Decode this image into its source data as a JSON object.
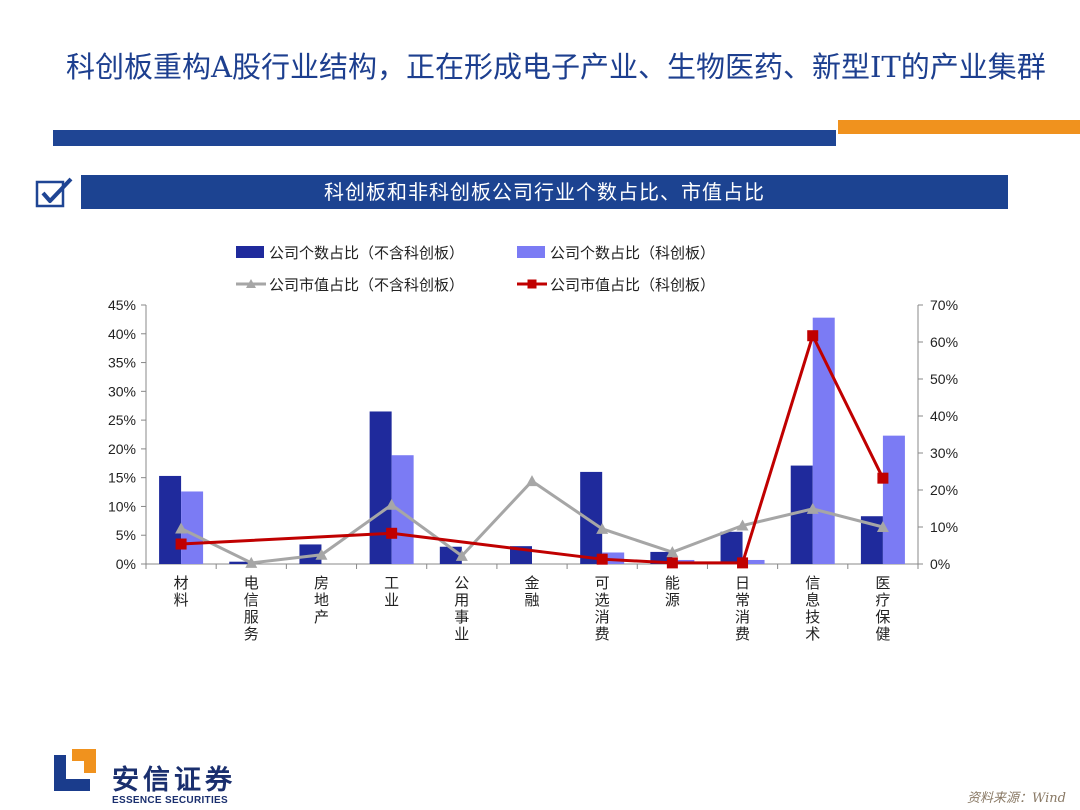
{
  "page": {
    "title": "科创板重构A股行业结构，正在形成电子产业、生物医药、新型IT的产业集群",
    "subtitle": "科创板和非科创板公司行业个数占比、市值占比",
    "logo_cn": "安信证券",
    "logo_en": "ESSENCE SECURITIES",
    "source": "资料来源：Wind",
    "colors": {
      "primary": "#1f4594",
      "accent": "#f0921e"
    },
    "icons": [
      "checkbox-icon",
      "essence-logo-icon"
    ]
  },
  "chart_data": {
    "type": "bar",
    "categories": [
      "材料",
      "电信服务",
      "房地产",
      "工业",
      "公用事业",
      "金融",
      "可选消费",
      "能源",
      "日常消费",
      "信息技术",
      "医疗保健"
    ],
    "left_axis": {
      "min": 0,
      "max": 45,
      "step": 5,
      "unit": "%"
    },
    "right_axis": {
      "min": 0,
      "max": 70,
      "step": 10,
      "unit": "%"
    },
    "legend_position": "top",
    "grid": false,
    "series": [
      {
        "name": "公司个数占比（不含科创板）",
        "type": "bar",
        "axis": "left",
        "color": "#1f2a9c",
        "values": [
          15.3,
          0.4,
          3.4,
          26.5,
          3.0,
          3.1,
          16.0,
          2.1,
          5.6,
          17.1,
          8.3
        ]
      },
      {
        "name": "公司个数占比（科创板）",
        "type": "bar",
        "axis": "left",
        "color": "#7b7bf4",
        "values": [
          12.6,
          0.0,
          0.0,
          18.9,
          0.0,
          0.0,
          2.0,
          0.7,
          0.7,
          42.8,
          22.3
        ]
      },
      {
        "name": "公司市值占比（不含科创板）",
        "type": "line",
        "axis": "right",
        "color": "#a6a6a6",
        "marker": "triangle",
        "values": [
          9.6,
          0.3,
          2.5,
          16.0,
          2.2,
          22.4,
          9.5,
          3.2,
          10.4,
          14.9,
          10.0
        ]
      },
      {
        "name": "公司市值占比（科创板）",
        "type": "line",
        "axis": "right",
        "color": "#c00000",
        "marker": "square",
        "values": [
          5.4,
          null,
          null,
          8.3,
          null,
          null,
          1.3,
          0.3,
          0.3,
          61.7,
          23.2
        ]
      }
    ]
  }
}
